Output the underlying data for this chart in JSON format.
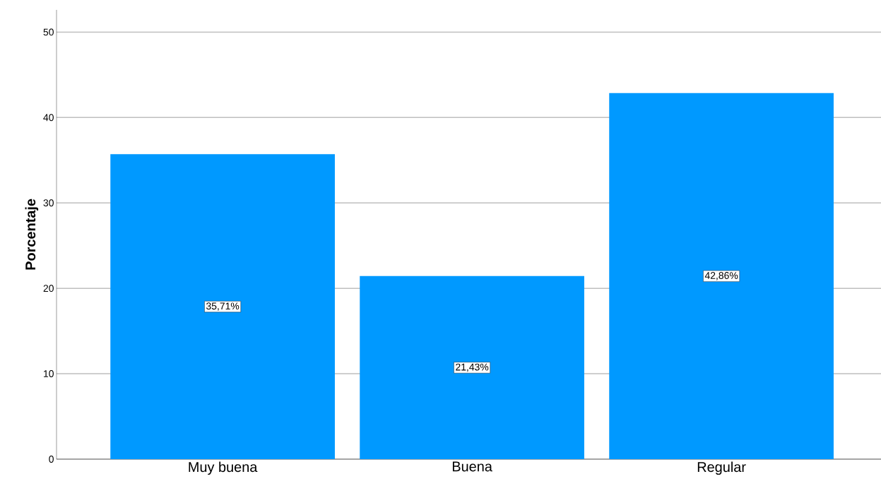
{
  "chart_data": {
    "type": "bar",
    "ylabel": "Porcentaje",
    "categories": [
      "Muy buena",
      "Buena",
      "Regular"
    ],
    "values": [
      35.71,
      21.43,
      42.86
    ],
    "value_labels": [
      "35,71%",
      "21,43%",
      "42,86%"
    ],
    "color": "#0099ff",
    "ylim": [
      0,
      52.6
    ],
    "yticks": [
      0,
      10,
      20,
      30,
      40,
      50
    ],
    "grid": "y"
  }
}
